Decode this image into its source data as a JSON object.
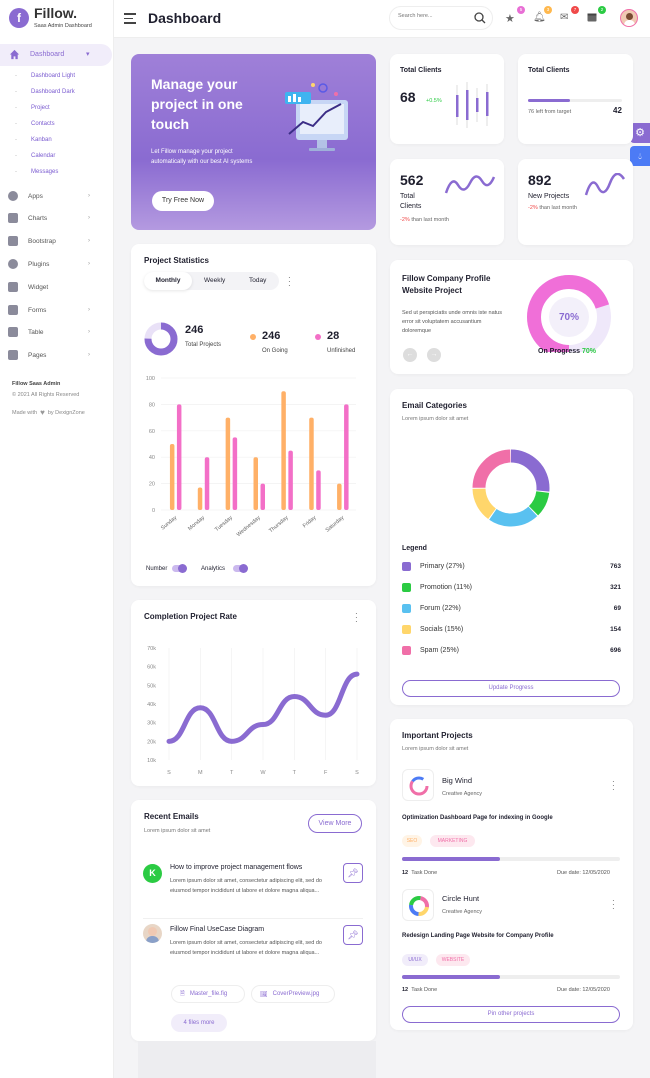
{
  "brand": {
    "name": "Fillow.",
    "tagline": "Saas Admin Dashboard",
    "logo_letter": "f"
  },
  "header": {
    "title": "Dashboard",
    "search_placeholder": "Search here...",
    "badges": [
      "5",
      "3",
      "7",
      "2"
    ]
  },
  "sidebar": {
    "dashboard": "Dashboard",
    "sub": [
      "Dashboard Light",
      "Dashboard Dark",
      "Project",
      "Contacts",
      "Kanban",
      "Calendar",
      "Messages"
    ],
    "items": [
      "Apps",
      "Charts",
      "Bootstrap",
      "Plugins",
      "Widget",
      "Forms",
      "Table",
      "Pages"
    ],
    "footer_title": "Fillow Saas Admin",
    "footer_copy": "© 2021 All Rights Reserved",
    "footer_made": "Made with",
    "footer_by": "by DexignZone"
  },
  "hero": {
    "title": "Manage your project in one touch",
    "desc": "Let Fillow manage your project automatically with our best AI systems",
    "button": "Try Free Now"
  },
  "stats": {
    "total_clients": {
      "label": "Total Clients",
      "value": "68",
      "change": "+0.5%"
    },
    "total_clients2": {
      "label": "Total Clients",
      "value": "42",
      "note": "76 left from target",
      "progress": 0.45
    },
    "clients562": {
      "value": "562",
      "label1": "Total",
      "label2": "Clients",
      "change": "-2%",
      "rest": "than last month"
    },
    "projects892": {
      "value": "892",
      "label": "New Projects",
      "change": "-2%",
      "rest": "than last month"
    }
  },
  "project_stats": {
    "title": "Project Statistics",
    "tabs": [
      "Monthly",
      "Weekly",
      "Today"
    ],
    "total": "246",
    "total_label": "Total Projects",
    "ongoing": "246",
    "ongoing_label": "On Going",
    "unfinished": "28",
    "unfinished_label": "Unfinished",
    "toggle1": "Number",
    "toggle2": "Analytics"
  },
  "company": {
    "title": "Fillow Company Profile Website Project",
    "desc": "Sed ut perspiciatis unde omnis iste natus error sit voluptatem accusantium doloremque",
    "percent": "70%",
    "label": "On Progress",
    "label_pct": "70%"
  },
  "email_cat": {
    "title": "Email Categories",
    "sub": "Lorem ipsum dolor sit amet",
    "legend_title": "Legend",
    "items": [
      {
        "name": "Primary (27%)",
        "value": "763",
        "color": "#8a6bd1"
      },
      {
        "name": "Promotion (11%)",
        "value": "321",
        "color": "#2bcb43"
      },
      {
        "name": "Forum (22%)",
        "value": "69",
        "color": "#59c1f0"
      },
      {
        "name": "Socials (15%)",
        "value": "154",
        "color": "#ffd66b"
      },
      {
        "name": "Spam (25%)",
        "value": "696",
        "color": "#f06fa8"
      }
    ],
    "button": "Update Progress"
  },
  "completion": {
    "title": "Completion Project Rate"
  },
  "important": {
    "title": "Important Projects",
    "sub": "Lorem ipsum dolor sit amet",
    "p1": {
      "name": "Big Wind",
      "agency": "Creative Agency",
      "desc": "Optimization Dashboard Page for indexing in Google",
      "tags": [
        "SEO",
        "MARKETING"
      ],
      "tasks": "12",
      "task_label": "Task Done",
      "due": "Due date: 12/05/2020"
    },
    "p2": {
      "name": "Circle Hunt",
      "agency": "Creative Agency",
      "desc": "Redesign Landing Page Website for Company Profile",
      "tags": [
        "UI/UX",
        "WEBSITE"
      ],
      "tasks": "12",
      "task_label": "Task Done",
      "due": "Due date: 12/05/2020"
    },
    "button": "Pin other projects"
  },
  "emails": {
    "title": "Recent Emails",
    "sub": "Lorem ipsum dolor sit amet",
    "view_more": "View More",
    "e1": {
      "avatar": "K",
      "subject": "How to improve project management flows",
      "body": "Lorem ipsum dolor sit amet, consectetur adipiscing elit, sed do eiusmod tempor incididunt ut labore et dolore magna aliqua..."
    },
    "e2": {
      "subject": "Fillow Final UseCase Diagram",
      "body": "Lorem ipsum dolor sit amet, consectetur adipiscing elit, sed do eiusmod tempor incididunt ut labore et dolore magna aliqua...",
      "file1": "Master_file.fig",
      "file2": "CoverPreview.jpg",
      "more": "4 files more"
    }
  },
  "chart_data": [
    {
      "type": "bar",
      "title": "Project Statistics",
      "categories": [
        "Sunday",
        "Monday",
        "Tuesday",
        "Wednesday",
        "Thursday",
        "Friday",
        "Saturday"
      ],
      "ylim": [
        0,
        100
      ],
      "yticks": [
        "0",
        "20",
        "40",
        "60",
        "80",
        "100"
      ],
      "series": [
        {
          "values": [
            50,
            17,
            70,
            40,
            90,
            70,
            20
          ],
          "color": "#ffb067"
        },
        {
          "values": [
            80,
            40,
            55,
            20,
            45,
            30,
            80
          ],
          "color": "#f36fc7"
        }
      ]
    },
    {
      "type": "line",
      "title": "Completion Project Rate",
      "x": [
        "S",
        "M",
        "T",
        "W",
        "T",
        "F",
        "S"
      ],
      "yticks": [
        "10k",
        "20k",
        "30k",
        "40k",
        "50k",
        "60k",
        "70k"
      ],
      "ylim": [
        10000,
        70000
      ],
      "values": [
        20000,
        38000,
        20000,
        29000,
        44000,
        34000,
        56000
      ],
      "color": "#8a6bd1"
    },
    {
      "type": "pie",
      "title": "Email Categories",
      "labels": [
        "Primary",
        "Promotion",
        "Forum",
        "Socials",
        "Spam"
      ],
      "values": [
        27,
        11,
        22,
        15,
        25
      ]
    },
    {
      "type": "pie",
      "title": "Total Projects",
      "values": [
        75,
        25
      ]
    }
  ]
}
